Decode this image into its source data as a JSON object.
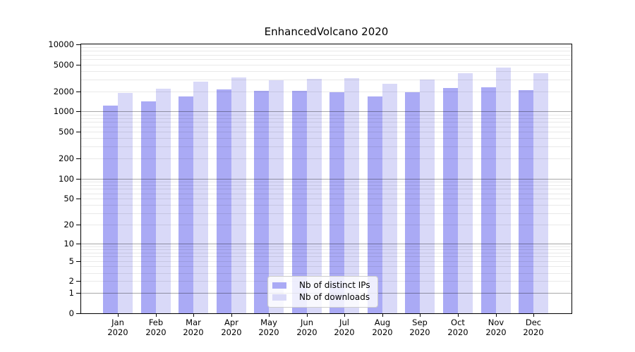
{
  "title": "EnhancedVolcano 2020",
  "chart_data": {
    "type": "bar",
    "title": "EnhancedVolcano 2020",
    "categories": [
      "Jan",
      "Feb",
      "Mar",
      "Apr",
      "May",
      "Jun",
      "Jul",
      "Aug",
      "Sep",
      "Oct",
      "Nov",
      "Dec"
    ],
    "year_label": "2020",
    "series": [
      {
        "name": "Nb of distinct IPs",
        "color": "#aaaaf5",
        "values": [
          1240,
          1430,
          1670,
          2120,
          2020,
          2040,
          1950,
          1670,
          1950,
          2230,
          2310,
          2100
        ]
      },
      {
        "name": "Nb of downloads",
        "color": "#d9d9f8",
        "values": [
          1880,
          2210,
          2770,
          3240,
          2900,
          3050,
          3170,
          2570,
          3000,
          3690,
          4480,
          3750
        ]
      }
    ],
    "y_ticks": [
      10000,
      5000,
      2000,
      1000,
      500,
      200,
      100,
      50,
      20,
      10,
      5,
      2,
      1,
      0
    ],
    "y_scale": "log10(1+v)",
    "ylim": [
      0,
      10000
    ],
    "grid": {
      "on": true,
      "minor_per_decade": true,
      "minor_color": "#e8e8e8",
      "major_color": "#a9a9a9",
      "drawn_over_bars": true
    },
    "legend_position": "inside-bottom-center",
    "axis_color": "#000000",
    "background_color": "#ffffff"
  }
}
